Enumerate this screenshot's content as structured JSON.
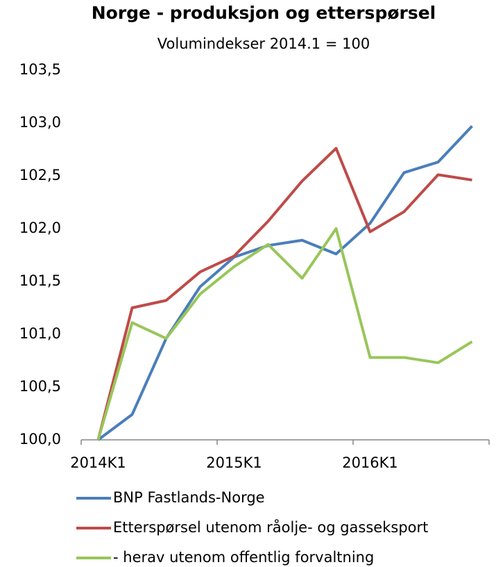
{
  "chart_data": {
    "type": "line",
    "title": "Norge - produksjon og etterspørsel",
    "subtitle": "Volumindekser 2014.1 = 100",
    "categories": [
      "2014K1",
      null,
      null,
      null,
      "2015K1",
      null,
      null,
      null,
      "2016K1",
      null,
      null,
      null
    ],
    "series": [
      {
        "name": "BNP Fastlands-Norge",
        "color": "#4a7ebb",
        "values": [
          100,
          100.24,
          100.96,
          101.45,
          101.73,
          101.84,
          101.89,
          101.76,
          102.05,
          102.53,
          102.63,
          102.97
        ]
      },
      {
        "name": "Etterspørsel utenom råolje- og gasseksport",
        "color": "#be4b48",
        "values": [
          100,
          101.25,
          101.32,
          101.59,
          101.74,
          102.07,
          102.45,
          102.76,
          101.97,
          102.16,
          102.51,
          102.46
        ]
      },
      {
        "name": "- herav utenom offentlig forvaltning",
        "color": "#98c65a",
        "values": [
          100,
          101.11,
          100.96,
          101.38,
          101.64,
          101.85,
          101.53,
          102.0,
          100.78,
          100.78,
          100.73,
          100.93
        ]
      }
    ],
    "ylim": [
      100,
      103.5
    ],
    "yticks": [
      {
        "value": 100,
        "label": "100,0"
      },
      {
        "value": 100.5,
        "label": "100,5"
      },
      {
        "value": 101,
        "label": "101,0"
      },
      {
        "value": 101.5,
        "label": "101,5"
      },
      {
        "value": 102,
        "label": "102,0"
      },
      {
        "value": 102.5,
        "label": "102,5"
      },
      {
        "value": 103,
        "label": "103,0"
      },
      {
        "value": 103.5,
        "label": "103,5"
      }
    ],
    "grid": false,
    "legend": "bottom"
  }
}
